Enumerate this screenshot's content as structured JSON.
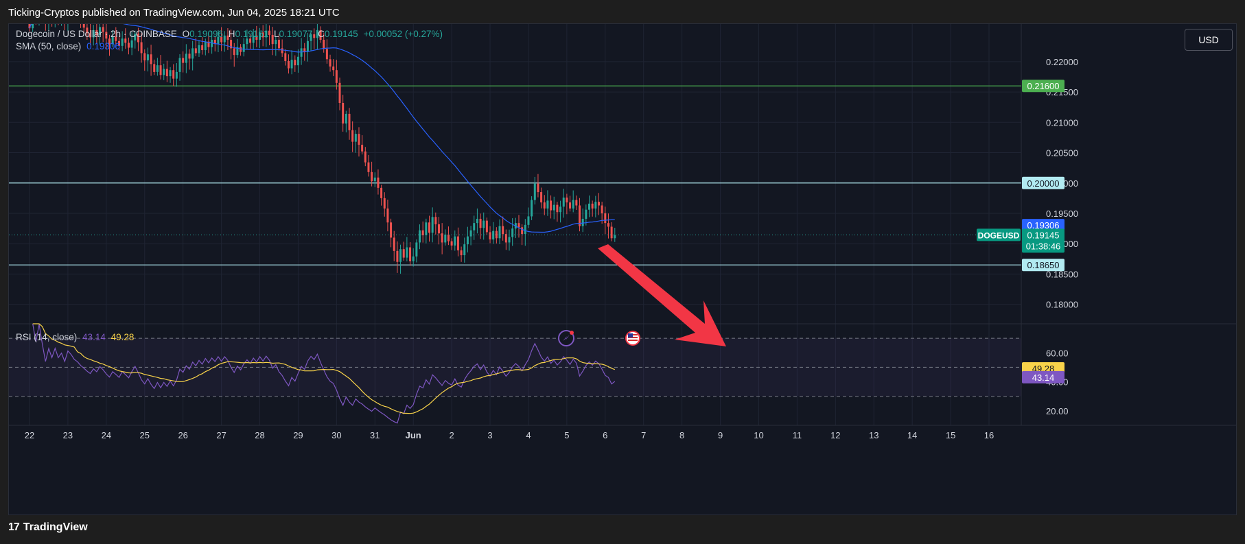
{
  "header": {
    "published": "Ticking-Cryptos published on TradingView.com, Jun 04, 2025 18:21 UTC"
  },
  "legend": {
    "symbol": "Dogecoin / US Dollar · 2h · COINBASE",
    "o_label": "O",
    "o_value": "0.19096",
    "h_label": "H",
    "h_value": "0.19161",
    "l_label": "L",
    "l_value": "0.19077",
    "c_label": "C",
    "c_value": "0.19145",
    "change": "+0.00052 (+0.27%)",
    "sma_label": "SMA (50, close)",
    "sma_value": "0.19306",
    "rsi_label": "RSI (14, close)",
    "rsi_value": "43.14",
    "rsi_ma_value": "49.28"
  },
  "currency_button": "USD",
  "footer": {
    "brand": "TradingView",
    "logo": "17"
  },
  "colors": {
    "up": "#26a69a",
    "down": "#ef5350",
    "sma": "#2962ff",
    "rsi": "#7e57c2",
    "rsi_ma": "#f9d34a",
    "arrow": "#f23645",
    "level_white": "#b2ebf2",
    "level_green": "#4caf50"
  },
  "icons": [
    "earnings-icon",
    "us-flag-icon",
    "down-arrow-icon"
  ],
  "chart_data": {
    "type": "candlestick",
    "timeframe": "2h",
    "price_axis": {
      "range": [
        0.1768,
        0.2262
      ],
      "ticks": [
        "0.22000",
        "0.21500",
        "0.21000",
        "0.20500",
        "0.20000",
        "0.19500",
        "0.19000",
        "0.18500",
        "0.18000"
      ]
    },
    "x_axis": {
      "ticks": [
        "22",
        "23",
        "24",
        "25",
        "26",
        "27",
        "28",
        "29",
        "30",
        "31",
        "Jun",
        "2",
        "3",
        "4",
        "5",
        "6",
        "7",
        "8",
        "9",
        "10",
        "11",
        "12",
        "13",
        "14",
        "15",
        "16"
      ],
      "tick_index": [
        0,
        12,
        24,
        36,
        48,
        60,
        72,
        84,
        96,
        108,
        120,
        132,
        144,
        156,
        168,
        180,
        192,
        204,
        216,
        228,
        240,
        252,
        264,
        276,
        288,
        300
      ]
    },
    "horizontal_levels": [
      {
        "price": 0.216,
        "label": "0.21600",
        "color": "green"
      },
      {
        "price": 0.2,
        "label": "0.20000",
        "color": "white"
      },
      {
        "price": 0.1865,
        "label": "0.18650",
        "color": "white"
      }
    ],
    "last_price": {
      "symbol": "DOGEUSD",
      "value": "0.19145",
      "countdown": "01:38:46"
    },
    "sma_tag": "0.19306",
    "closes": [
      0.2255,
      0.228,
      0.2268,
      0.229,
      0.2278,
      0.2262,
      0.2283,
      0.2271,
      0.2292,
      0.2276,
      0.2288,
      0.227,
      0.2305,
      0.2296,
      0.2282,
      0.2275,
      0.2264,
      0.2256,
      0.2247,
      0.224,
      0.2252,
      0.2244,
      0.2257,
      0.2249,
      0.2238,
      0.2229,
      0.2241,
      0.2234,
      0.2226,
      0.2238,
      0.2231,
      0.2223,
      0.2235,
      0.2246,
      0.2232,
      0.2214,
      0.2202,
      0.2212,
      0.2196,
      0.2183,
      0.2194,
      0.2178,
      0.2188,
      0.2176,
      0.2186,
      0.2172,
      0.2183,
      0.2206,
      0.2198,
      0.2213,
      0.2205,
      0.2222,
      0.2214,
      0.2227,
      0.2219,
      0.2233,
      0.2224,
      0.2236,
      0.2229,
      0.2241,
      0.2232,
      0.2243,
      0.2236,
      0.2222,
      0.2211,
      0.2224,
      0.2216,
      0.2229,
      0.2238,
      0.2231,
      0.2243,
      0.2236,
      0.2248,
      0.224,
      0.2251,
      0.2244,
      0.2229,
      0.2236,
      0.2222,
      0.2214,
      0.2201,
      0.2189,
      0.2203,
      0.2194,
      0.2208,
      0.2222,
      0.2216,
      0.2234,
      0.2245,
      0.2239,
      0.2252,
      0.2236,
      0.2221,
      0.2204,
      0.2192,
      0.2186,
      0.2165,
      0.2132,
      0.2098,
      0.2114,
      0.2087,
      0.2068,
      0.2081,
      0.2063,
      0.2052,
      0.2034,
      0.2018,
      0.2003,
      0.2009,
      0.1992,
      0.1975,
      0.1958,
      0.1935,
      0.191,
      0.1888,
      0.187,
      0.1891,
      0.1877,
      0.1894,
      0.1871,
      0.1879,
      0.1902,
      0.1922,
      0.1914,
      0.1935,
      0.1918,
      0.1944,
      0.1932,
      0.1917,
      0.1902,
      0.1915,
      0.1904,
      0.1897,
      0.1912,
      0.1889,
      0.1881,
      0.1899,
      0.1912,
      0.1922,
      0.1934,
      0.1941,
      0.1926,
      0.1938,
      0.1919,
      0.1907,
      0.1921,
      0.1909,
      0.1929,
      0.1916,
      0.1902,
      0.1911,
      0.1925,
      0.1934,
      0.1927,
      0.1916,
      0.1931,
      0.1945,
      0.1972,
      0.1999,
      0.1985,
      0.1968,
      0.1958,
      0.1971,
      0.1955,
      0.1964,
      0.1952,
      0.1961,
      0.1976,
      0.1968,
      0.1958,
      0.1972,
      0.1963,
      0.1929,
      0.1941,
      0.1956,
      0.1966,
      0.1958,
      0.1969,
      0.1963,
      0.195,
      0.1934,
      0.1928,
      0.1909,
      0.1914
    ]
  }
}
